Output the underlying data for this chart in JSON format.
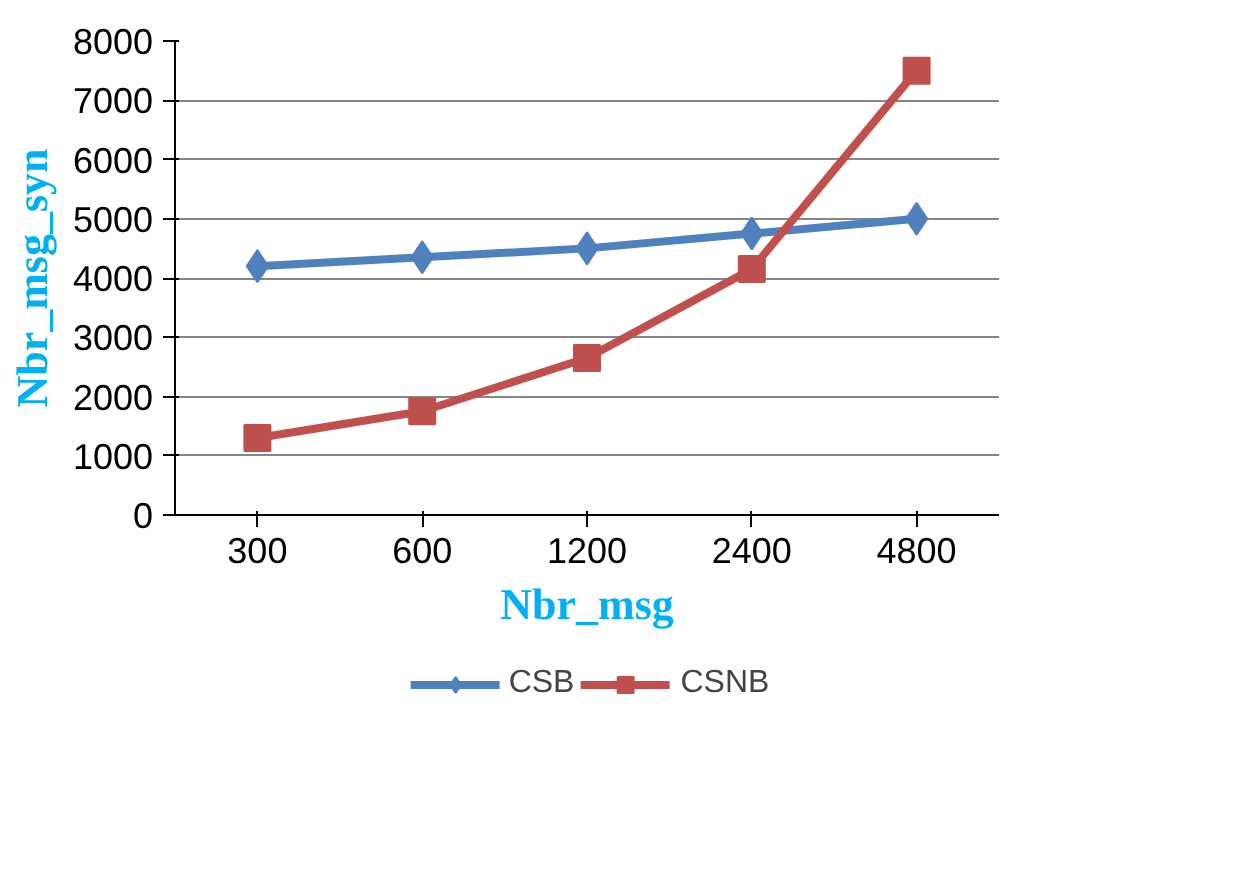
{
  "chart_data": {
    "type": "line",
    "xlabel": "Nbr_msg",
    "ylabel": "Nbr_msg_syn",
    "categories": [
      "300",
      "600",
      "1200",
      "2400",
      "4800"
    ],
    "series": [
      {
        "name": "CSB",
        "color": "#4f81bd",
        "marker": "diamond",
        "values": [
          4200,
          4350,
          4500,
          4750,
          5000
        ]
      },
      {
        "name": "CSNB",
        "color": "#c0504d",
        "marker": "square",
        "values": [
          1300,
          1750,
          2650,
          4150,
          7500
        ]
      }
    ],
    "ylim": [
      0,
      8000
    ],
    "yticks": [
      0,
      1000,
      2000,
      3000,
      4000,
      5000,
      6000,
      7000,
      8000
    ],
    "grid": "y",
    "legend": "bottom"
  }
}
